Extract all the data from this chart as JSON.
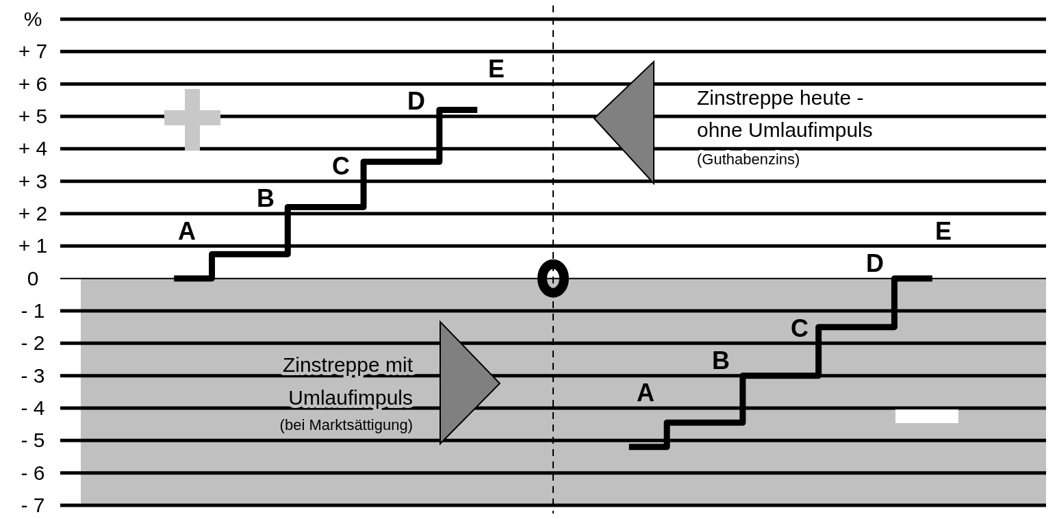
{
  "chart_data": {
    "type": "step",
    "ylim": [
      -7,
      8
    ],
    "yticks": [
      {
        "value": -7,
        "label": "- 7"
      },
      {
        "value": -6,
        "label": "- 6"
      },
      {
        "value": -5,
        "label": "- 5"
      },
      {
        "value": -4,
        "label": "- 4"
      },
      {
        "value": -3,
        "label": "- 3"
      },
      {
        "value": -2,
        "label": "- 2"
      },
      {
        "value": -1,
        "label": "- 1"
      },
      {
        "value": 0,
        "label": "0"
      },
      {
        "value": 1,
        "label": "+ 1"
      },
      {
        "value": 2,
        "label": "+ 2"
      },
      {
        "value": 3,
        "label": "+ 3"
      },
      {
        "value": 4,
        "label": "+ 4"
      },
      {
        "value": 5,
        "label": "+ 5"
      },
      {
        "value": 6,
        "label": "+ 6"
      },
      {
        "value": 7,
        "label": "+ 7"
      },
      {
        "value": 8,
        "label": "%"
      }
    ],
    "categories": [
      null,
      null,
      null,
      null,
      null,
      null,
      null,
      null,
      null,
      null,
      null,
      null,
      null
    ],
    "grid": "y",
    "line_style": "solid",
    "series": [
      {
        "color": "#000000",
        "values": [
          null,
          0,
          0.75,
          2.2,
          3.6,
          5.2,
          null,
          -5.2,
          -4.45,
          -3,
          -1.5,
          0,
          null
        ]
      }
    ],
    "bands": [
      {
        "axis": "y",
        "from": -7,
        "to": 0,
        "color": "#c0c0c0"
      }
    ],
    "annotations": [
      "A",
      "B",
      "C",
      "D",
      "E",
      "A",
      "B",
      "C",
      "D",
      "E",
      "Zinstreppe heute -",
      "ohne Umlaufimpuls",
      "(Guthabenzins)",
      "Zinstreppe mit",
      "Umlaufimpuls",
      "(bei Marktsättigung)"
    ]
  }
}
